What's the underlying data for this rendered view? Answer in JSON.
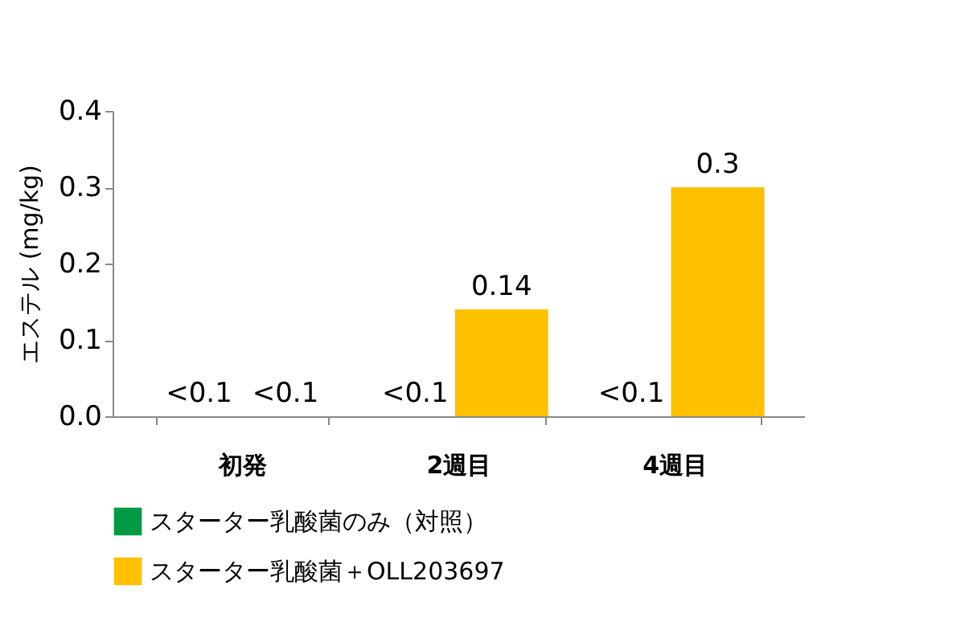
{
  "chart_data": {
    "type": "bar",
    "ylabel": "エステル (mg/kg)",
    "categories": [
      "初発",
      "2週目",
      "4週目"
    ],
    "series": [
      {
        "name": "スターター乳酸菌のみ（対照）",
        "color": "#009a44",
        "values": [
          null,
          null,
          null
        ],
        "value_labels": [
          "<0.1",
          "<0.1",
          "<0.1"
        ]
      },
      {
        "name": "スターター乳酸菌＋OLL203697",
        "color": "#ffc000",
        "values": [
          null,
          0.14,
          0.3
        ],
        "value_labels": [
          "<0.1",
          "0.14",
          "0.3"
        ]
      }
    ],
    "ylim": [
      0,
      0.4
    ],
    "yticks": [
      {
        "value": 0,
        "label": "0.0"
      },
      {
        "value": 0.1,
        "label": "0.1"
      },
      {
        "value": 0.2,
        "label": "0.2"
      },
      {
        "value": 0.3,
        "label": "0.3"
      },
      {
        "value": 0.4,
        "label": "0.4"
      }
    ],
    "grid": false,
    "legend": "bottom"
  }
}
